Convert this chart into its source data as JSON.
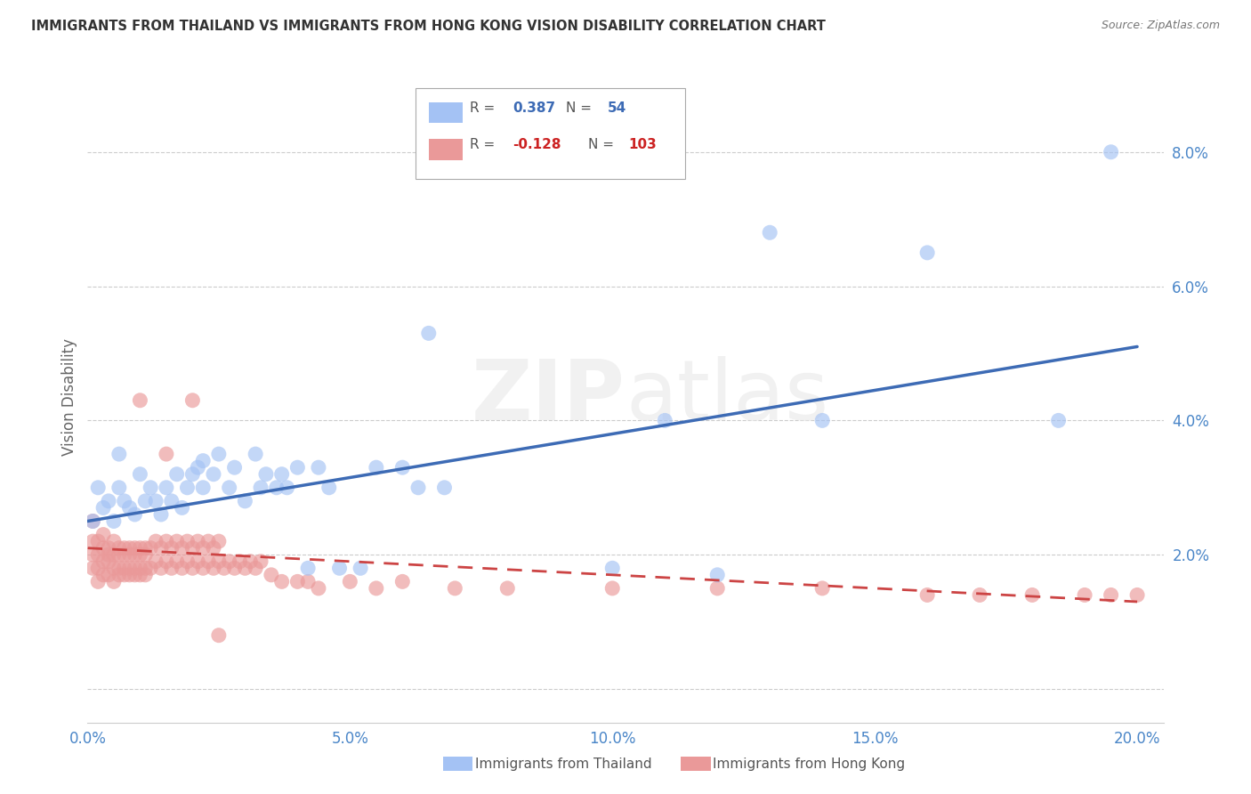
{
  "title": "IMMIGRANTS FROM THAILAND VS IMMIGRANTS FROM HONG KONG VISION DISABILITY CORRELATION CHART",
  "source": "Source: ZipAtlas.com",
  "ylabel": "Vision Disability",
  "xlim": [
    0.0,
    0.205
  ],
  "ylim": [
    -0.005,
    0.092
  ],
  "xticks": [
    0.0,
    0.05,
    0.1,
    0.15,
    0.2
  ],
  "yticks": [
    0.0,
    0.02,
    0.04,
    0.06,
    0.08
  ],
  "xticklabels": [
    "0.0%",
    "5.0%",
    "10.0%",
    "15.0%",
    "20.0%"
  ],
  "yticklabels": [
    "",
    "2.0%",
    "4.0%",
    "6.0%",
    "8.0%"
  ],
  "thailand_color": "#a4c2f4",
  "hongkong_color": "#ea9999",
  "thailand_line_color": "#3d6bb5",
  "hongkong_line_color": "#cc4444",
  "thailand_R": 0.387,
  "thailand_N": 54,
  "hongkong_R": -0.128,
  "hongkong_N": 103,
  "legend_label_thailand": "Immigrants from Thailand",
  "legend_label_hongkong": "Immigrants from Hong Kong",
  "background_color": "#ffffff",
  "grid_color": "#cccccc",
  "th_line_start_y": 0.025,
  "th_line_end_y": 0.051,
  "hk_line_start_y": 0.021,
  "hk_line_end_y": 0.013,
  "thailand_x": [
    0.001,
    0.002,
    0.003,
    0.004,
    0.005,
    0.006,
    0.006,
    0.007,
    0.008,
    0.009,
    0.01,
    0.011,
    0.012,
    0.013,
    0.014,
    0.015,
    0.016,
    0.017,
    0.018,
    0.019,
    0.02,
    0.021,
    0.022,
    0.022,
    0.024,
    0.025,
    0.027,
    0.028,
    0.03,
    0.032,
    0.033,
    0.034,
    0.036,
    0.037,
    0.038,
    0.04,
    0.042,
    0.044,
    0.046,
    0.048,
    0.052,
    0.055,
    0.06,
    0.063,
    0.065,
    0.068,
    0.1,
    0.11,
    0.12,
    0.13,
    0.14,
    0.16,
    0.185,
    0.195
  ],
  "thailand_y": [
    0.025,
    0.03,
    0.027,
    0.028,
    0.025,
    0.03,
    0.035,
    0.028,
    0.027,
    0.026,
    0.032,
    0.028,
    0.03,
    0.028,
    0.026,
    0.03,
    0.028,
    0.032,
    0.027,
    0.03,
    0.032,
    0.033,
    0.03,
    0.034,
    0.032,
    0.035,
    0.03,
    0.033,
    0.028,
    0.035,
    0.03,
    0.032,
    0.03,
    0.032,
    0.03,
    0.033,
    0.018,
    0.033,
    0.03,
    0.018,
    0.018,
    0.033,
    0.033,
    0.03,
    0.053,
    0.03,
    0.018,
    0.04,
    0.017,
    0.068,
    0.04,
    0.065,
    0.04,
    0.08
  ],
  "hongkong_x": [
    0.001,
    0.001,
    0.001,
    0.001,
    0.002,
    0.002,
    0.002,
    0.002,
    0.003,
    0.003,
    0.003,
    0.003,
    0.004,
    0.004,
    0.004,
    0.004,
    0.005,
    0.005,
    0.005,
    0.005,
    0.006,
    0.006,
    0.006,
    0.006,
    0.007,
    0.007,
    0.007,
    0.007,
    0.008,
    0.008,
    0.008,
    0.008,
    0.009,
    0.009,
    0.009,
    0.009,
    0.01,
    0.01,
    0.01,
    0.01,
    0.011,
    0.011,
    0.011,
    0.011,
    0.012,
    0.012,
    0.013,
    0.013,
    0.014,
    0.014,
    0.015,
    0.015,
    0.016,
    0.016,
    0.017,
    0.017,
    0.018,
    0.018,
    0.019,
    0.019,
    0.02,
    0.02,
    0.021,
    0.021,
    0.022,
    0.022,
    0.023,
    0.023,
    0.024,
    0.024,
    0.025,
    0.025,
    0.026,
    0.027,
    0.028,
    0.029,
    0.03,
    0.031,
    0.032,
    0.033,
    0.035,
    0.037,
    0.04,
    0.042,
    0.044,
    0.05,
    0.055,
    0.06,
    0.07,
    0.08,
    0.1,
    0.12,
    0.14,
    0.16,
    0.17,
    0.18,
    0.19,
    0.195,
    0.2,
    0.01,
    0.015,
    0.02,
    0.025
  ],
  "hongkong_y": [
    0.02,
    0.022,
    0.025,
    0.018,
    0.02,
    0.022,
    0.018,
    0.016,
    0.019,
    0.021,
    0.017,
    0.023,
    0.019,
    0.021,
    0.017,
    0.02,
    0.018,
    0.022,
    0.016,
    0.02,
    0.018,
    0.021,
    0.017,
    0.02,
    0.018,
    0.021,
    0.017,
    0.02,
    0.018,
    0.021,
    0.017,
    0.02,
    0.018,
    0.021,
    0.017,
    0.02,
    0.018,
    0.021,
    0.017,
    0.02,
    0.018,
    0.021,
    0.017,
    0.02,
    0.018,
    0.021,
    0.019,
    0.022,
    0.018,
    0.021,
    0.019,
    0.022,
    0.018,
    0.021,
    0.019,
    0.022,
    0.018,
    0.021,
    0.019,
    0.022,
    0.018,
    0.021,
    0.019,
    0.022,
    0.018,
    0.021,
    0.019,
    0.022,
    0.018,
    0.021,
    0.019,
    0.022,
    0.018,
    0.019,
    0.018,
    0.019,
    0.018,
    0.019,
    0.018,
    0.019,
    0.017,
    0.016,
    0.016,
    0.016,
    0.015,
    0.016,
    0.015,
    0.016,
    0.015,
    0.015,
    0.015,
    0.015,
    0.015,
    0.014,
    0.014,
    0.014,
    0.014,
    0.014,
    0.014,
    0.043,
    0.035,
    0.043,
    0.008
  ]
}
